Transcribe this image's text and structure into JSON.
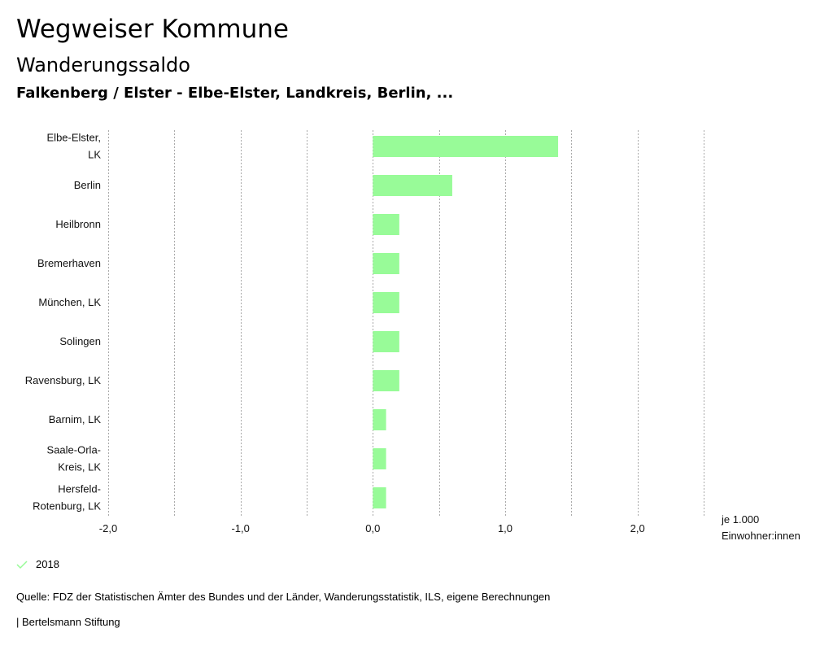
{
  "header": {
    "title": "Wegweiser Kommune",
    "subtitle": "Wanderungssaldo",
    "regions": "Falkenberg / Elster - Elbe-Elster, Landkreis, Berlin, ..."
  },
  "colors": {
    "bar": "#98fb98",
    "grid": "#aaaaaa",
    "legend_check": "#98fb98"
  },
  "chart_data": {
    "type": "bar",
    "orientation": "horizontal",
    "title": "Wanderungssaldo",
    "categories": [
      [
        "Elbe-Elster,",
        "LK"
      ],
      [
        "Berlin"
      ],
      [
        "Heilbronn"
      ],
      [
        "Bremerhaven"
      ],
      [
        "München, LK"
      ],
      [
        "Solingen"
      ],
      [
        "Ravensburg, LK"
      ],
      [
        "Barnim, LK"
      ],
      [
        "Saale-Orla-",
        "Kreis, LK"
      ],
      [
        "Hersfeld-",
        "Rotenburg, LK"
      ]
    ],
    "series": [
      {
        "name": "2018",
        "values": [
          1.4,
          0.6,
          0.2,
          0.2,
          0.2,
          0.2,
          0.2,
          0.1,
          0.1,
          0.1
        ]
      }
    ],
    "xlim": [
      -2.0,
      2.5
    ],
    "xticks": [
      -2.0,
      -1.0,
      0.0,
      1.0,
      2.0
    ],
    "xtick_labels": [
      "-2,0",
      "-1,0",
      "0,0",
      "1,0",
      "2,0"
    ],
    "gridlines": [
      -2.0,
      -1.5,
      -1.0,
      -0.5,
      0.0,
      0.5,
      1.0,
      1.5,
      2.0,
      2.5
    ],
    "xlabel": [
      "je 1.000",
      "Einwohner:innen"
    ],
    "grid": true
  },
  "legend": {
    "label": "2018"
  },
  "footer": {
    "source": "Quelle: FDZ der Statistischen Ämter des Bundes und der Länder, Wanderungsstatistik, ILS, eigene Berechnungen",
    "publisher": "| Bertelsmann Stiftung"
  }
}
